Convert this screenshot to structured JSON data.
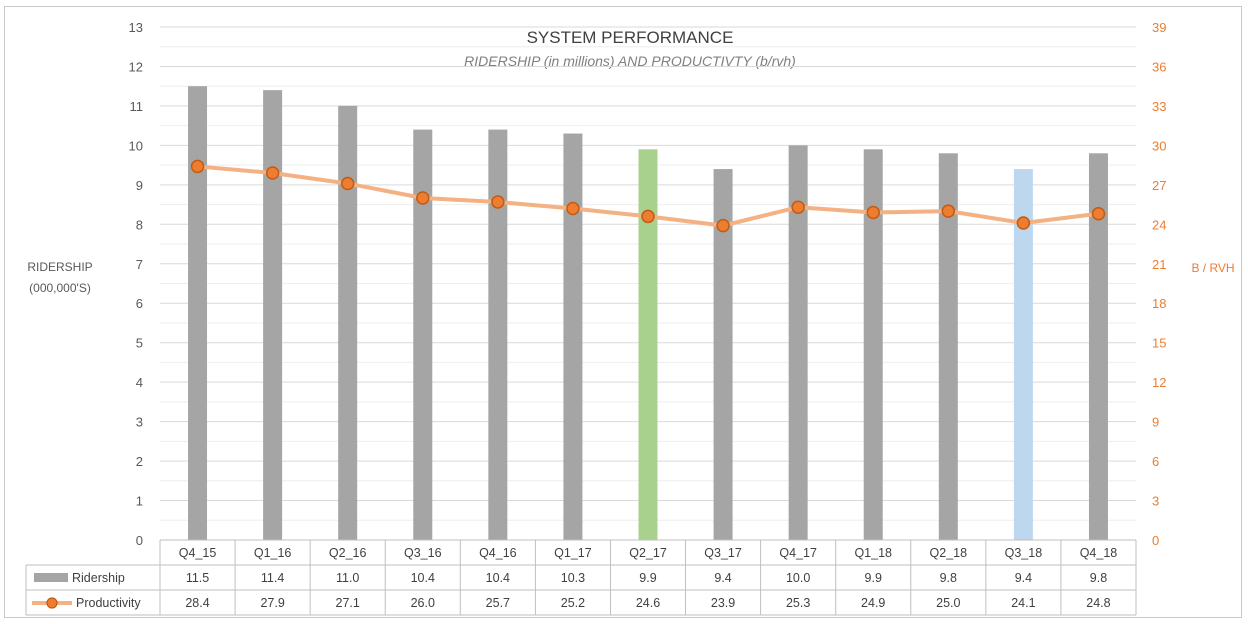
{
  "chart_data": {
    "type": "bar",
    "title": "SYSTEM PERFORMANCE",
    "subtitle": "RIDERSHIP (in millions) AND PRODUCTIVTY (b/rvh)",
    "ylabel_left": [
      "RIDERSHIP",
      "(000,000'S)"
    ],
    "ylabel_right": "B / RVH",
    "ylim_left": [
      0,
      13
    ],
    "ylim_right": [
      0,
      39
    ],
    "yticks_left": [
      "0",
      "1",
      "2",
      "3",
      "4",
      "5",
      "6",
      "7",
      "8",
      "9",
      "10",
      "11",
      "12",
      "13"
    ],
    "yticks_right": [
      "0",
      "3",
      "6",
      "9",
      "12",
      "15",
      "18",
      "21",
      "24",
      "27",
      "30",
      "33",
      "36",
      "39"
    ],
    "grid": true,
    "legend_placement": "data-table",
    "categories": [
      "Q4_15",
      "Q1_16",
      "Q2_16",
      "Q3_16",
      "Q4_16",
      "Q1_17",
      "Q2_17",
      "Q3_17",
      "Q4_17",
      "Q1_18",
      "Q2_18",
      "Q3_18",
      "Q4_18"
    ],
    "series": [
      {
        "name": "Ridership",
        "type": "bar",
        "axis": "left",
        "values": [
          11.5,
          11.4,
          11.0,
          10.4,
          10.4,
          10.3,
          9.9,
          9.4,
          10.0,
          9.9,
          9.8,
          9.4,
          9.8
        ],
        "labels": [
          "11.5",
          "11.4",
          "11.0",
          "10.4",
          "10.4",
          "10.3",
          "9.9",
          "9.4",
          "10.0",
          "9.9",
          "9.8",
          "9.4",
          "9.8"
        ],
        "color": "#a5a5a5",
        "highlight_colors": {
          "Q2_17": "#a9d18e",
          "Q3_18": "#bdd7ee"
        }
      },
      {
        "name": "Productivity",
        "type": "line",
        "axis": "right",
        "values": [
          28.4,
          27.9,
          27.1,
          26.0,
          25.7,
          25.2,
          24.6,
          23.9,
          25.3,
          24.9,
          25.0,
          24.1,
          24.8
        ],
        "labels": [
          "28.4",
          "27.9",
          "27.1",
          "26.0",
          "25.7",
          "25.2",
          "24.6",
          "23.9",
          "25.3",
          "24.9",
          "25.0",
          "24.1",
          "24.8"
        ],
        "line_color": "#f4b183",
        "marker_color": "#ed7d31"
      }
    ]
  }
}
